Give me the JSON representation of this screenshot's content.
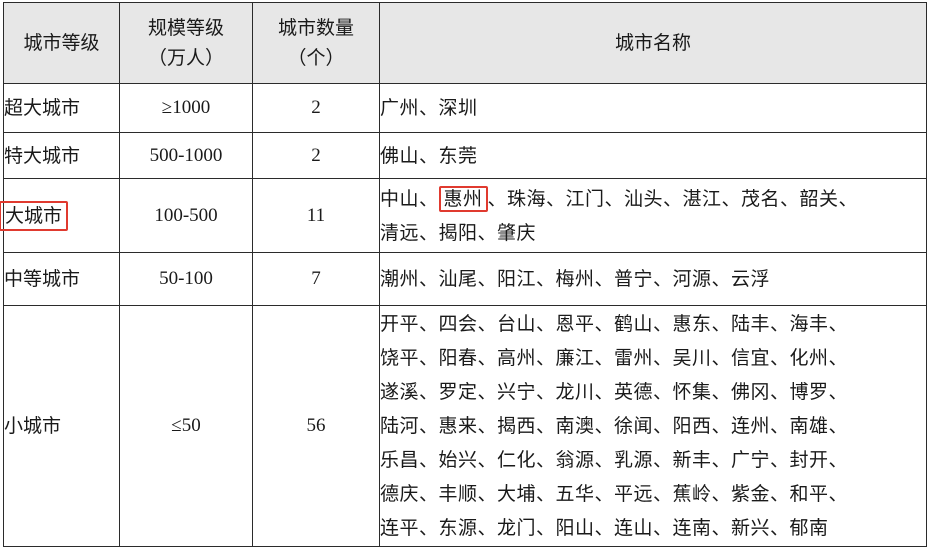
{
  "table": {
    "headers": {
      "level": "城市等级",
      "scale_line1": "规模等级",
      "scale_line2": "（万人）",
      "count_line1": "城市数量",
      "count_line2": "（个）",
      "names": "城市名称"
    },
    "rows": [
      {
        "level": "超大城市",
        "scale": "≥1000",
        "count": "2",
        "names": [
          "广州、深圳"
        ]
      },
      {
        "level": "特大城市",
        "scale": "500-1000",
        "count": "2",
        "names": [
          "佛山、东莞"
        ]
      },
      {
        "level": "大城市",
        "scale": "100-500",
        "count": "11",
        "names_prefix": "中山、",
        "names_highlight": "惠州",
        "names_suffix": "、珠海、江门、汕头、湛江、茂名、韶关、",
        "names_line2": "清远、揭阳、肇庆"
      },
      {
        "level": "中等城市",
        "scale": "50-100",
        "count": "7",
        "names": [
          "潮州、汕尾、阳江、梅州、普宁、河源、云浮"
        ]
      },
      {
        "level": "小城市",
        "scale": "≤50",
        "count": "56",
        "names": [
          "开平、四会、台山、恩平、鹤山、惠东、陆丰、海丰、",
          "饶平、阳春、高州、廉江、雷州、吴川、信宜、化州、",
          "遂溪、罗定、兴宁、龙川、英德、怀集、佛冈、博罗、",
          "陆河、惠来、揭西、南澳、徐闻、阳西、连州、南雄、",
          "乐昌、始兴、仁化、翁源、乳源、新丰、广宁、封开、",
          "德庆、丰顺、大埔、五华、平远、蕉岭、紫金、和平、",
          "连平、东源、龙门、阳山、连山、连南、新兴、郁南"
        ]
      }
    ],
    "highlight_color": "#e03a2f"
  }
}
